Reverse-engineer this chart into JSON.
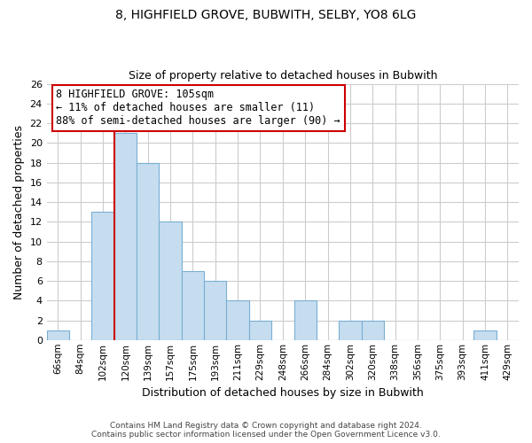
{
  "title": "8, HIGHFIELD GROVE, BUBWITH, SELBY, YO8 6LG",
  "subtitle": "Size of property relative to detached houses in Bubwith",
  "xlabel": "Distribution of detached houses by size in Bubwith",
  "ylabel": "Number of detached properties",
  "bar_color": "#c6ddf0",
  "bar_edge_color": "#7aafd4",
  "categories": [
    "66sqm",
    "84sqm",
    "102sqm",
    "120sqm",
    "139sqm",
    "157sqm",
    "175sqm",
    "193sqm",
    "211sqm",
    "229sqm",
    "248sqm",
    "266sqm",
    "284sqm",
    "302sqm",
    "320sqm",
    "338sqm",
    "356sqm",
    "375sqm",
    "393sqm",
    "411sqm",
    "429sqm"
  ],
  "values": [
    1,
    0,
    13,
    21,
    18,
    12,
    7,
    6,
    4,
    2,
    0,
    4,
    0,
    2,
    2,
    0,
    0,
    0,
    0,
    1,
    0
  ],
  "ylim": [
    0,
    26
  ],
  "yticks": [
    0,
    2,
    4,
    6,
    8,
    10,
    12,
    14,
    16,
    18,
    20,
    22,
    24,
    26
  ],
  "property_line_x": 2.5,
  "property_line_color": "#cc0000",
  "annotation_line1": "8 HIGHFIELD GROVE: 105sqm",
  "annotation_line2": "← 11% of detached houses are smaller (11)",
  "annotation_line3": "88% of semi-detached houses are larger (90) →",
  "annotation_box_color": "#ffffff",
  "annotation_box_edge": "#cc0000",
  "footer_line1": "Contains HM Land Registry data © Crown copyright and database right 2024.",
  "footer_line2": "Contains public sector information licensed under the Open Government Licence v3.0.",
  "background_color": "#ffffff",
  "grid_color": "#cccccc"
}
